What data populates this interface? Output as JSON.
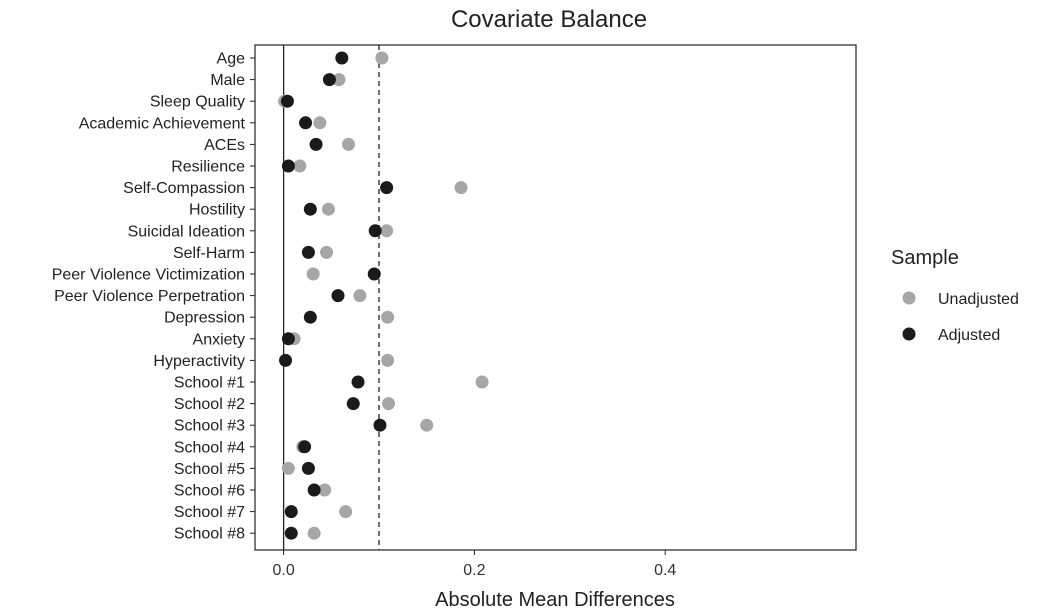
{
  "chart_data": {
    "type": "scatter",
    "title": "Covariate Balance",
    "xlabel": "Absolute Mean Differences",
    "ylabel": "",
    "xlim": [
      -0.03,
      0.6
    ],
    "x_ticks": [
      0.0,
      0.2,
      0.4
    ],
    "x_tick_labels": [
      "0.0",
      "0.2",
      "0.4"
    ],
    "grid": false,
    "reference_lines": [
      {
        "x": 0.0,
        "style": "solid"
      },
      {
        "x": 0.1,
        "style": "dashed"
      }
    ],
    "categories": [
      "Age",
      "Male",
      "Sleep Quality",
      "Academic Achievement",
      "ACEs",
      "Resilience",
      "Self-Compassion",
      "Hostility",
      "Suicidal Ideation",
      "Self-Harm",
      "Peer Violence Victimization",
      "Peer Violence Perpetration",
      "Depression",
      "Anxiety",
      "Hyperactivity",
      "School #1",
      "School #2",
      "School #3",
      "School #4",
      "School #5",
      "School #6",
      "School #7",
      "School #8"
    ],
    "legend": {
      "title": "Sample",
      "position": "right"
    },
    "series": [
      {
        "name": "Unadjusted",
        "color": "#a6a6a6",
        "values": [
          0.103,
          0.058,
          0.001,
          0.038,
          0.068,
          0.017,
          0.186,
          0.047,
          0.108,
          0.045,
          0.031,
          0.08,
          0.109,
          0.011,
          0.109,
          0.208,
          0.11,
          0.15,
          0.02,
          0.005,
          0.043,
          0.065,
          0.032
        ]
      },
      {
        "name": "Adjusted",
        "color": "#1a1a1a",
        "values": [
          0.061,
          0.048,
          0.004,
          0.023,
          0.034,
          0.005,
          0.108,
          0.028,
          0.096,
          0.026,
          0.095,
          0.057,
          0.028,
          0.005,
          0.002,
          0.078,
          0.073,
          0.101,
          0.022,
          0.026,
          0.032,
          0.008,
          0.008
        ]
      }
    ]
  }
}
